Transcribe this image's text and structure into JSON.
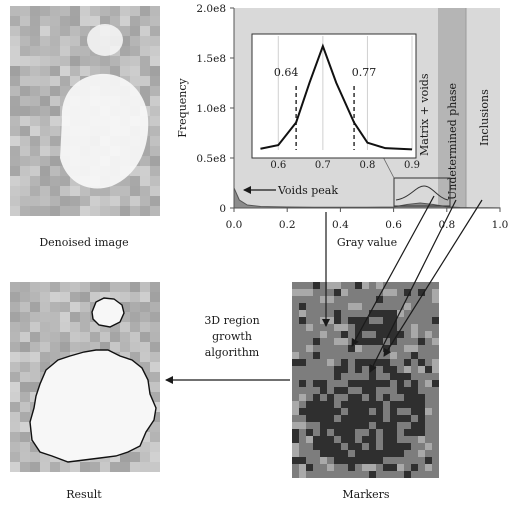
{
  "captions": {
    "denoised": "Denoised image",
    "result": "Result",
    "markers": "Markers"
  },
  "algorithm": {
    "line1": "3D region",
    "line2": "growth",
    "line3": "algorithm"
  },
  "histogram": {
    "xlabel": "Gray value",
    "ylabel": "Frequency",
    "xticks": [
      "0.0",
      "0.2",
      "0.4",
      "0.6",
      "0.8",
      "1.0"
    ],
    "yticks": [
      "0",
      "0.5e8",
      "1.0e8",
      "1.5e8",
      "2.0e8"
    ],
    "voids_peak_label": "Voids peak",
    "regions": {
      "matrix": "Matrix + voids",
      "undetermined": "Undetermined phase",
      "inclusions": "Inclusions"
    }
  },
  "inset": {
    "xticks": [
      "0.6",
      "0.7",
      "0.8",
      "0.9"
    ],
    "threshold_low": "0.64",
    "threshold_high": "0.77"
  },
  "colors": {
    "histogram_bg": "#d9d9d9",
    "undetermined_band": "#b5b5b5",
    "marker_dark": "#2f2f2f",
    "marker_mid": "#7d7d7d",
    "marker_light": "#a9a9a9"
  },
  "chart_data": [
    {
      "type": "area",
      "xlabel": "Gray value",
      "ylabel": "Frequency",
      "xlim": [
        0.0,
        1.0
      ],
      "ylim": [
        0,
        200000000
      ],
      "x": [
        0.0,
        0.02,
        0.05,
        0.1,
        0.2,
        0.3,
        0.4,
        0.5,
        0.6,
        0.65,
        0.7,
        0.75,
        0.8,
        0.85,
        0.9,
        0.95,
        1.0
      ],
      "values": [
        20000000,
        8000000,
        3000000,
        1500000,
        1000000,
        800000,
        700000,
        700000,
        1000000,
        3500000,
        5000000,
        3500000,
        1200000,
        500000,
        300000,
        200000,
        100000
      ]
    },
    {
      "type": "line",
      "xlim": [
        0.55,
        0.9
      ],
      "ylim": [
        0,
        180000000
      ],
      "x": [
        0.56,
        0.6,
        0.64,
        0.67,
        0.7,
        0.73,
        0.77,
        0.8,
        0.84,
        0.9
      ],
      "values": [
        2000000,
        8000000,
        45000000,
        110000000,
        170000000,
        110000000,
        45000000,
        12000000,
        3000000,
        1000000
      ],
      "thresholds": [
        0.64,
        0.77
      ]
    }
  ]
}
